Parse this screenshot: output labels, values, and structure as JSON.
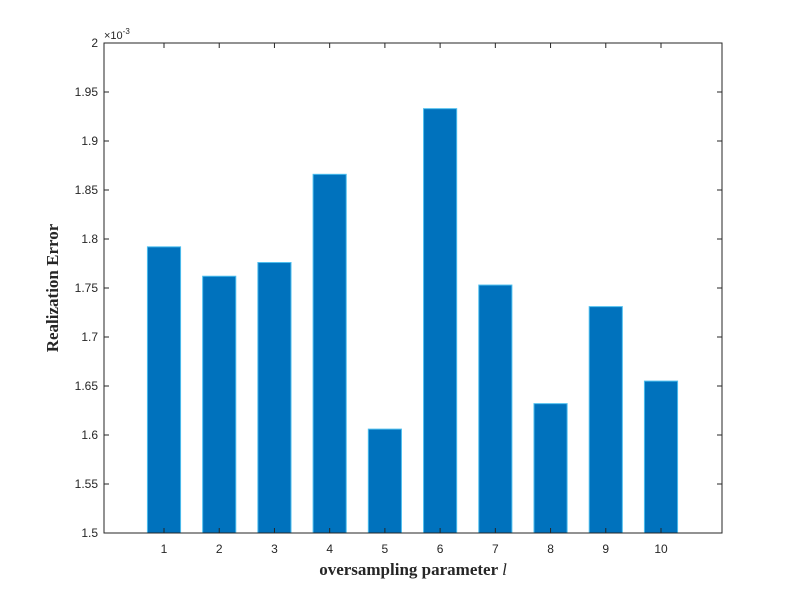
{
  "chart_data": {
    "type": "bar",
    "categories": [
      "1",
      "2",
      "3",
      "4",
      "5",
      "6",
      "7",
      "8",
      "9",
      "10"
    ],
    "values": [
      1.792,
      1.762,
      1.776,
      1.866,
      1.606,
      1.933,
      1.753,
      1.632,
      1.731,
      1.655
    ],
    "value_scale_label": "×10",
    "value_scale_exponent": "-3",
    "xlabel": "oversampling parameter ",
    "xlabel_variable": "l",
    "ylabel": "Realization Error",
    "ylim": [
      1.5,
      2.0
    ],
    "yticks": [
      "1.5",
      "1.55",
      "1.6",
      "1.65",
      "1.7",
      "1.75",
      "1.8",
      "1.85",
      "1.9",
      "1.95",
      "2"
    ],
    "grid": false,
    "bar_color": "#0072BD",
    "bar_edge_color": "#4DBEEE"
  }
}
